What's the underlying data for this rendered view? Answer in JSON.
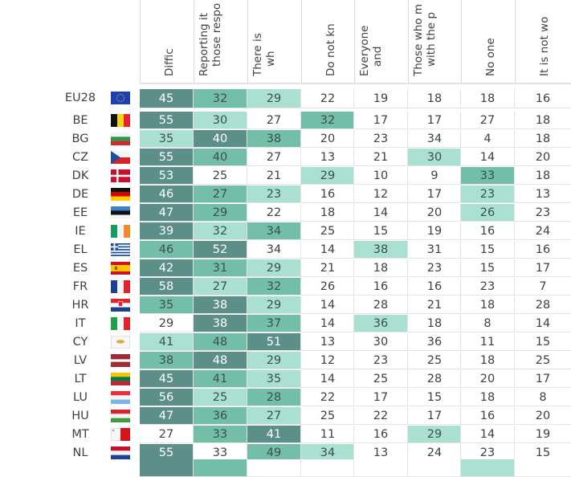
{
  "table": {
    "columns": [
      {
        "label": "Diffic",
        "label2": ""
      },
      {
        "label": "Reporting it",
        "label2": "those respo"
      },
      {
        "label": "There is",
        "label2": "wh"
      },
      {
        "label": "Do not kn",
        "label2": ""
      },
      {
        "label": "Everyone",
        "label2": "and"
      },
      {
        "label": "Those who m",
        "label2": "with the p"
      },
      {
        "label": "No one",
        "label2": ""
      },
      {
        "label": "It is not wo",
        "label2": ""
      }
    ],
    "shade_colors": {
      "dark": "#5c8f88",
      "med": "#73bea9",
      "light": "#a9e0d2",
      "none": "#ffffff"
    },
    "rows": [
      {
        "code": "EU28",
        "flag": "eu-flag",
        "values": [
          "45",
          "32",
          "29",
          "22",
          "19",
          "18",
          "18",
          "16"
        ],
        "shades": [
          "dark",
          "med",
          "light",
          "none",
          "none",
          "none",
          "none",
          "none"
        ]
      },
      {
        "code": "BE",
        "flag": "belgium-flag",
        "values": [
          "55",
          "30",
          "27",
          "32",
          "17",
          "17",
          "27",
          "18"
        ],
        "shades": [
          "dark",
          "light",
          "none",
          "med",
          "none",
          "none",
          "none",
          "none"
        ]
      },
      {
        "code": "BG",
        "flag": "bulgaria-flag",
        "values": [
          "35",
          "40",
          "38",
          "20",
          "23",
          "34",
          "4",
          "18"
        ],
        "shades": [
          "light",
          "dark",
          "med",
          "none",
          "none",
          "none",
          "none",
          "none"
        ]
      },
      {
        "code": "CZ",
        "flag": "czechia-flag",
        "values": [
          "55",
          "40",
          "27",
          "13",
          "21",
          "30",
          "14",
          "20"
        ],
        "shades": [
          "dark",
          "med",
          "none",
          "none",
          "none",
          "light",
          "none",
          "none"
        ]
      },
      {
        "code": "DK",
        "flag": "denmark-flag",
        "values": [
          "53",
          "25",
          "21",
          "29",
          "10",
          "9",
          "33",
          "18"
        ],
        "shades": [
          "dark",
          "none",
          "none",
          "light",
          "none",
          "none",
          "med",
          "none"
        ]
      },
      {
        "code": "DE",
        "flag": "germany-flag",
        "values": [
          "46",
          "27",
          "23",
          "16",
          "12",
          "17",
          "23",
          "13"
        ],
        "shades": [
          "dark",
          "med",
          "light",
          "none",
          "none",
          "none",
          "light",
          "none"
        ]
      },
      {
        "code": "EE",
        "flag": "estonia-flag",
        "values": [
          "47",
          "29",
          "22",
          "18",
          "14",
          "20",
          "26",
          "23"
        ],
        "shades": [
          "dark",
          "med",
          "none",
          "none",
          "none",
          "none",
          "light",
          "none"
        ]
      },
      {
        "code": "IE",
        "flag": "ireland-flag",
        "values": [
          "39",
          "32",
          "34",
          "25",
          "15",
          "19",
          "16",
          "24"
        ],
        "shades": [
          "dark",
          "light",
          "med",
          "none",
          "none",
          "none",
          "none",
          "none"
        ]
      },
      {
        "code": "EL",
        "flag": "greece-flag",
        "values": [
          "46",
          "52",
          "34",
          "14",
          "38",
          "31",
          "15",
          "16"
        ],
        "shades": [
          "med",
          "dark",
          "none",
          "none",
          "light",
          "none",
          "none",
          "none"
        ]
      },
      {
        "code": "ES",
        "flag": "spain-flag",
        "values": [
          "42",
          "31",
          "29",
          "21",
          "18",
          "23",
          "15",
          "17"
        ],
        "shades": [
          "dark",
          "med",
          "light",
          "none",
          "none",
          "none",
          "none",
          "none"
        ]
      },
      {
        "code": "FR",
        "flag": "france-flag",
        "values": [
          "58",
          "27",
          "32",
          "26",
          "16",
          "16",
          "23",
          "7"
        ],
        "shades": [
          "dark",
          "light",
          "med",
          "none",
          "none",
          "none",
          "none",
          "none"
        ]
      },
      {
        "code": "HR",
        "flag": "croatia-flag",
        "values": [
          "35",
          "38",
          "29",
          "14",
          "28",
          "21",
          "18",
          "28"
        ],
        "shades": [
          "med",
          "dark",
          "light",
          "none",
          "none",
          "none",
          "none",
          "none"
        ]
      },
      {
        "code": "IT",
        "flag": "italy-flag",
        "values": [
          "29",
          "38",
          "37",
          "14",
          "36",
          "18",
          "8",
          "14"
        ],
        "shades": [
          "none",
          "dark",
          "med",
          "none",
          "light",
          "none",
          "none",
          "none"
        ]
      },
      {
        "code": "CY",
        "flag": "cyprus-flag",
        "values": [
          "41",
          "48",
          "51",
          "13",
          "30",
          "36",
          "11",
          "15"
        ],
        "shades": [
          "light",
          "med",
          "dark",
          "none",
          "none",
          "none",
          "none",
          "none"
        ]
      },
      {
        "code": "LV",
        "flag": "latvia-flag",
        "values": [
          "38",
          "48",
          "29",
          "12",
          "23",
          "25",
          "18",
          "25"
        ],
        "shades": [
          "med",
          "dark",
          "light",
          "none",
          "none",
          "none",
          "none",
          "none"
        ]
      },
      {
        "code": "LT",
        "flag": "lithuania-flag",
        "values": [
          "45",
          "41",
          "35",
          "14",
          "25",
          "28",
          "20",
          "17"
        ],
        "shades": [
          "dark",
          "med",
          "light",
          "none",
          "none",
          "none",
          "none",
          "none"
        ]
      },
      {
        "code": "LU",
        "flag": "luxembourg-flag",
        "values": [
          "56",
          "25",
          "28",
          "22",
          "17",
          "15",
          "18",
          "8"
        ],
        "shades": [
          "dark",
          "light",
          "med",
          "none",
          "none",
          "none",
          "none",
          "none"
        ]
      },
      {
        "code": "HU",
        "flag": "hungary-flag",
        "values": [
          "47",
          "36",
          "27",
          "25",
          "22",
          "17",
          "16",
          "20"
        ],
        "shades": [
          "dark",
          "med",
          "light",
          "none",
          "none",
          "none",
          "none",
          "none"
        ]
      },
      {
        "code": "MT",
        "flag": "malta-flag",
        "values": [
          "27",
          "33",
          "41",
          "11",
          "16",
          "29",
          "14",
          "19"
        ],
        "shades": [
          "none",
          "med",
          "dark",
          "none",
          "none",
          "light",
          "none",
          "none"
        ]
      },
      {
        "code": "NL",
        "flag": "netherlands-flag",
        "values": [
          "55",
          "33",
          "49",
          "34",
          "13",
          "24",
          "23",
          "15"
        ],
        "shades": [
          "dark",
          "none",
          "med",
          "light",
          "none",
          "none",
          "none",
          "none"
        ]
      },
      {
        "code": "",
        "flag": "",
        "values": [
          "",
          "",
          "",
          "",
          "",
          "",
          "",
          ""
        ],
        "shades": [
          "dark",
          "med",
          "none",
          "none",
          "none",
          "none",
          "light",
          "none"
        ]
      }
    ]
  }
}
